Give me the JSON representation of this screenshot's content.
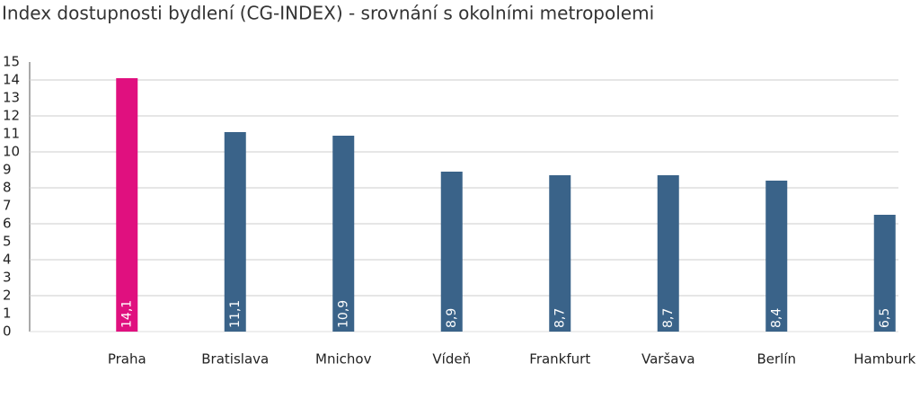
{
  "chart_data": {
    "type": "bar",
    "title": "Index dostupnosti bydlení (CG-INDEX) - srovnání s okolními metropolemi",
    "categories": [
      "Praha",
      "Bratislava",
      "Mnichov",
      "Vídeň",
      "Frankfurt",
      "Varšava",
      "Berlín",
      "Hamburk"
    ],
    "values": [
      14.1,
      11.1,
      10.9,
      8.9,
      8.7,
      8.7,
      8.4,
      6.5
    ],
    "value_labels": [
      "14,1",
      "11,1",
      "10,9",
      "8,9",
      "8,7",
      "8,7",
      "8,4",
      "6,5"
    ],
    "colors": [
      "#e0107f",
      "#3a6389",
      "#3a6389",
      "#3a6389",
      "#3a6389",
      "#3a6389",
      "#3a6389",
      "#3a6389"
    ],
    "ylim": [
      0,
      15
    ],
    "yticks": [
      0,
      1,
      2,
      3,
      4,
      5,
      6,
      7,
      8,
      9,
      10,
      11,
      12,
      13,
      14,
      15
    ],
    "grid": true,
    "grid_step": 2
  }
}
